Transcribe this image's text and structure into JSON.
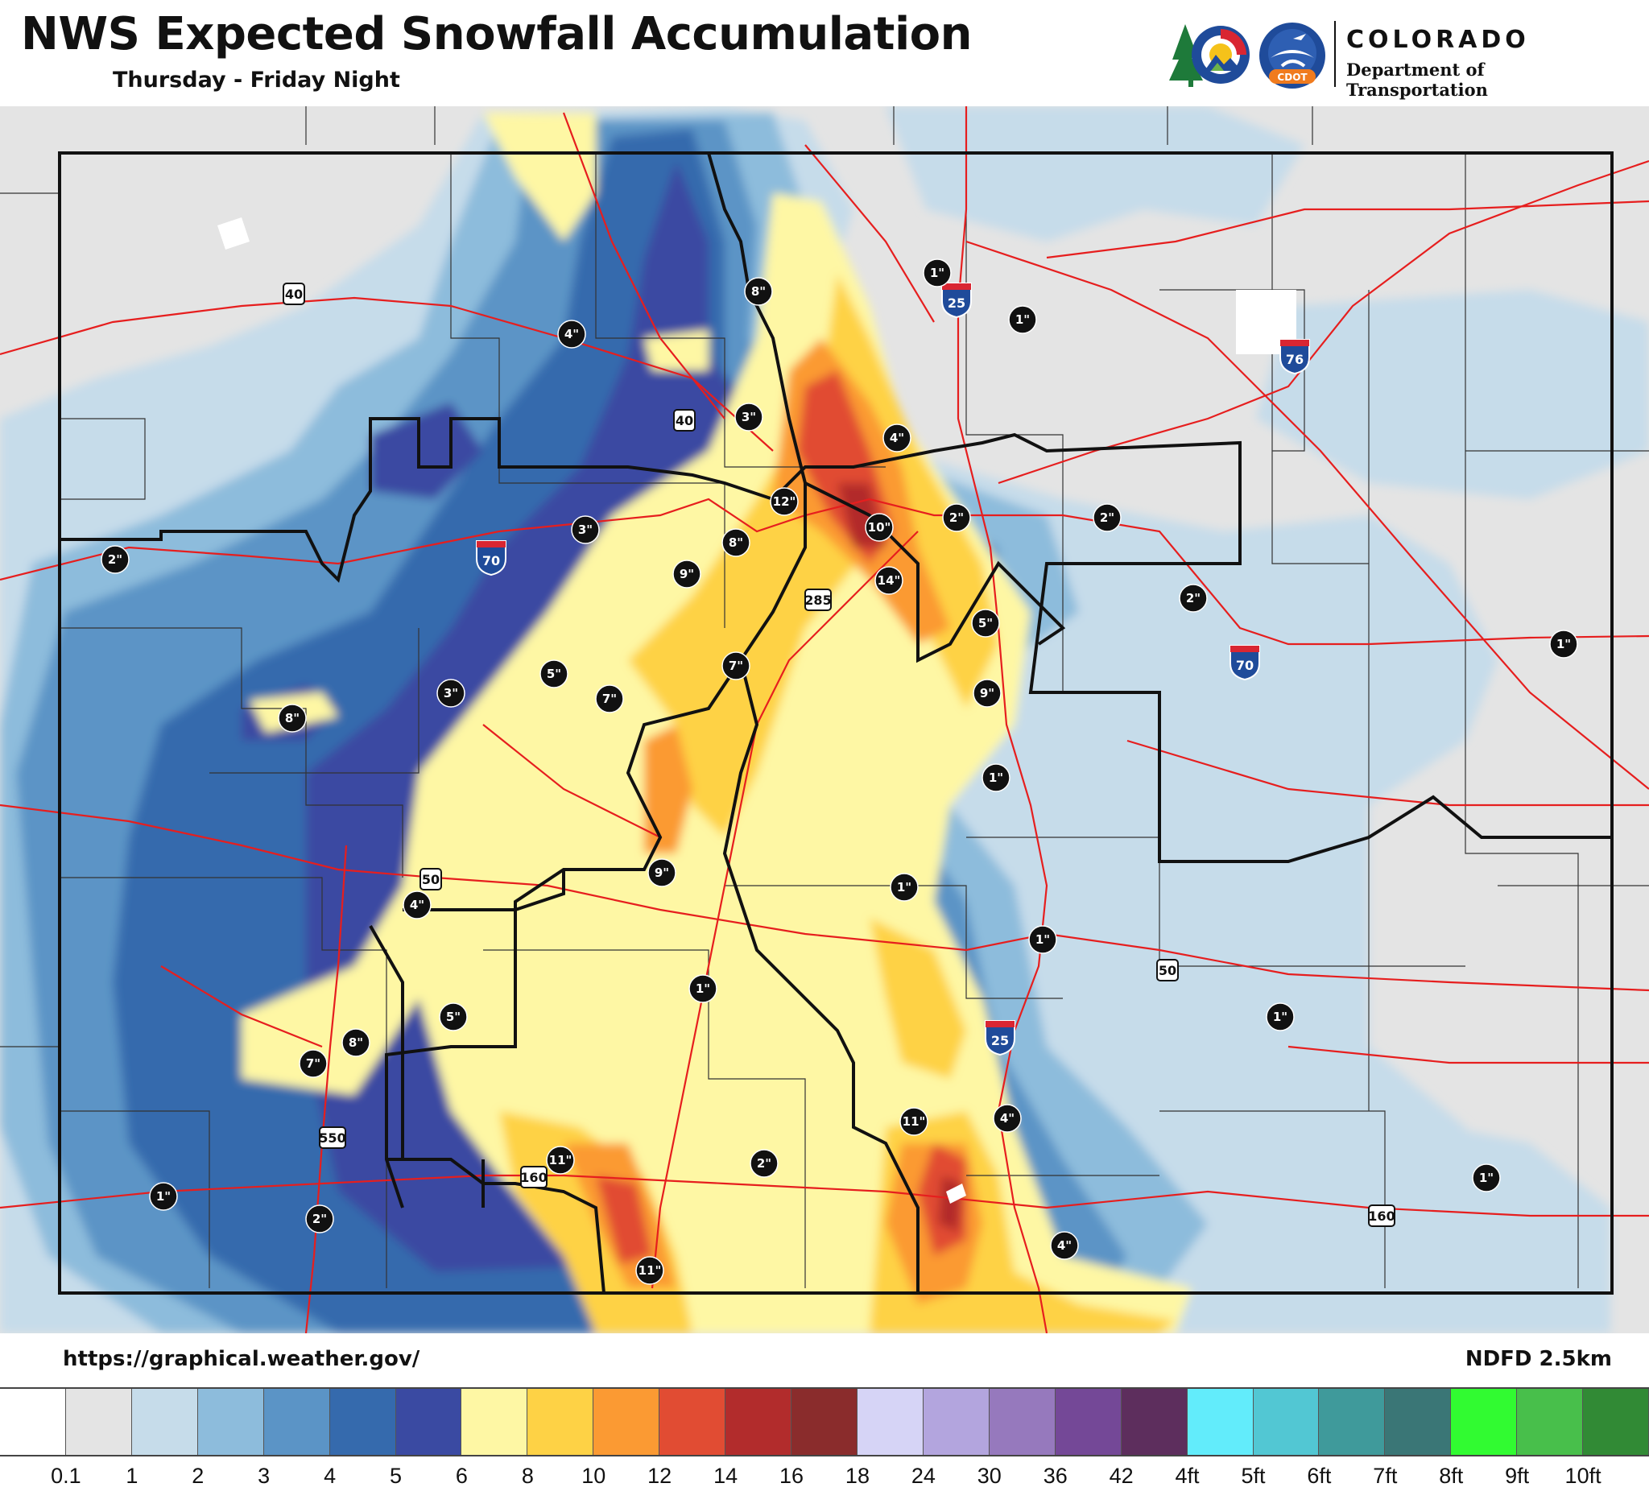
{
  "header": {
    "title": "NWS Expected Snowfall Accumulation",
    "subtitle": "Thursday - Friday Night"
  },
  "logo": {
    "name": "COLORADO",
    "department": "Department of Transportation",
    "cdot_label": "CDOT"
  },
  "footer": {
    "url": "https://graphical.weather.gov/",
    "source": "NDFD 2.5km"
  },
  "legend": {
    "colors": [
      "#ffffff",
      "#e4e4e4",
      "#c6dcea",
      "#8dbcdc",
      "#5b94c6",
      "#356aad",
      "#3a4aa2",
      "#fef7a4",
      "#fed245",
      "#fb9a33",
      "#e14c33",
      "#b22c2c",
      "#8a2c2c",
      "#d6d4f6",
      "#b3a5de",
      "#9679bd",
      "#744897",
      "#5d2e5d",
      "#62ecfb",
      "#52c7d3",
      "#3f9a9b",
      "#3a7676",
      "#31fb31",
      "#48bf4b",
      "#318a35"
    ],
    "labels": [
      "0.1",
      "1",
      "2",
      "3",
      "4",
      "5",
      "6",
      "8",
      "10",
      "12",
      "14",
      "16",
      "18",
      "24",
      "30",
      "36",
      "42",
      "4ft",
      "5ft",
      "6ft",
      "7ft",
      "8ft",
      "9ft",
      "10ft"
    ]
  },
  "map": {
    "colors": {
      "background": "#e4e4e4",
      "state_border": "#111111",
      "roads": "#e61e1e",
      "county_lines": "#333333"
    },
    "badges": [
      {
        "label": "1\""
      },
      {
        "label": "1\""
      },
      {
        "label": "4\""
      },
      {
        "label": "8\""
      },
      {
        "label": "3\""
      },
      {
        "label": "4\""
      },
      {
        "label": "12\""
      },
      {
        "label": "10\""
      },
      {
        "label": "2\""
      },
      {
        "label": "2\""
      },
      {
        "label": "3\""
      },
      {
        "label": "8\""
      },
      {
        "label": "9\""
      },
      {
        "label": "14\""
      },
      {
        "label": "2\""
      },
      {
        "label": "5\""
      },
      {
        "label": "2\""
      },
      {
        "label": "1\""
      },
      {
        "label": "5\""
      },
      {
        "label": "7\""
      },
      {
        "label": "7\""
      },
      {
        "label": "9\""
      },
      {
        "label": "8\""
      },
      {
        "label": "3\""
      },
      {
        "label": "1\""
      },
      {
        "label": "9\""
      },
      {
        "label": "1\""
      },
      {
        "label": "4\""
      },
      {
        "label": "1\""
      },
      {
        "label": "1\""
      },
      {
        "label": "5\""
      },
      {
        "label": "8\""
      },
      {
        "label": "7\""
      },
      {
        "label": "1\""
      },
      {
        "label": "4\""
      },
      {
        "label": "11\""
      },
      {
        "label": "11\""
      },
      {
        "label": "2\""
      },
      {
        "label": "1\""
      },
      {
        "label": "2\""
      },
      {
        "label": "11\""
      },
      {
        "label": "4\""
      },
      {
        "label": "1\""
      }
    ],
    "shields": [
      {
        "label": "40",
        "kind": "us"
      },
      {
        "label": "40",
        "kind": "us"
      },
      {
        "label": "25",
        "kind": "interstate"
      },
      {
        "label": "76",
        "kind": "interstate"
      },
      {
        "label": "70",
        "kind": "interstate"
      },
      {
        "label": "70",
        "kind": "interstate"
      },
      {
        "label": "285",
        "kind": "us"
      },
      {
        "label": "50",
        "kind": "us"
      },
      {
        "label": "50",
        "kind": "us"
      },
      {
        "label": "25",
        "kind": "interstate"
      },
      {
        "label": "550",
        "kind": "us"
      },
      {
        "label": "160",
        "kind": "us"
      },
      {
        "label": "160",
        "kind": "us"
      }
    ]
  }
}
